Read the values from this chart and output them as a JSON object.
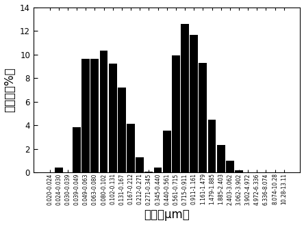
{
  "categories": [
    "0.020-0.024",
    "0.024-0.030",
    "0.030-0.039",
    "0.039-0.049",
    "0.049-0.063",
    "0.063-0.080",
    "0.080-0.102",
    "0.102-0.131",
    "0.131-0.167",
    "0.167-0.212",
    "0.212-0.271",
    "0.271-0.345",
    "0.345-0.440",
    "0.440-0.561",
    "0.561-0.715",
    "0.715-0.911",
    "0.911-1.161",
    "1.161-1.479",
    "1.479-1.885",
    "1.885-2.403",
    "2.403-3.062",
    "3.062-3.902",
    "3.902-4.972",
    "4.972-6.336",
    "6.336-8.074",
    "8.074-10.28",
    "10.28-13.11"
  ],
  "values": [
    0.0,
    0.4,
    0.0,
    3.8,
    9.6,
    9.6,
    10.3,
    9.2,
    7.2,
    4.1,
    1.25,
    0.05,
    0.4,
    3.55,
    9.9,
    12.6,
    11.65,
    9.3,
    4.45,
    2.3,
    1.0,
    0.2,
    0.0,
    0.0,
    0.0,
    0.0,
    0.0
  ],
  "bar_color": "#000000",
  "xlabel": "粒径（μm）",
  "ylabel": "百分比（%）",
  "ylim": [
    0,
    14
  ],
  "yticks": [
    0,
    2,
    4,
    6,
    8,
    10,
    12,
    14
  ],
  "background_color": "#ffffff",
  "xlabel_fontsize": 12,
  "ylabel_fontsize": 12,
  "tick_fontsize": 8.5,
  "xtick_fontsize": 5.5
}
